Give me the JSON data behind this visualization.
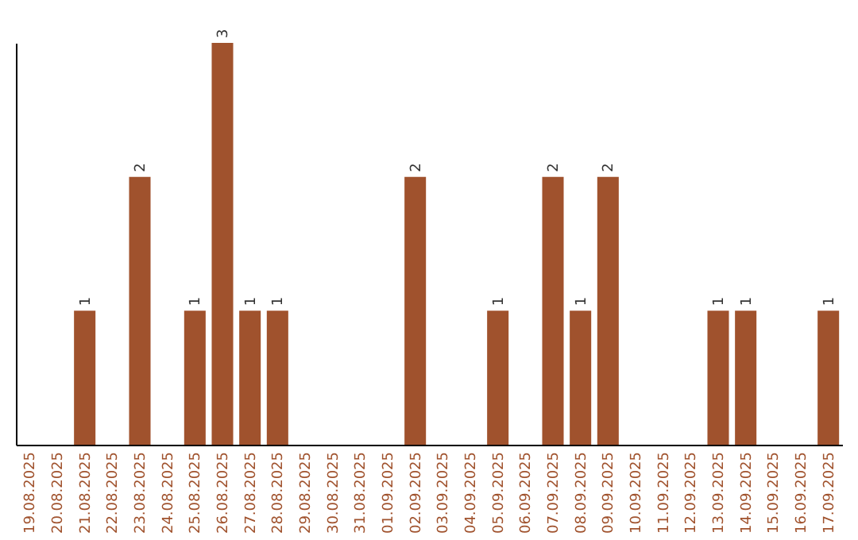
{
  "chart_data": {
    "type": "bar",
    "categories": [
      "19.08.2025",
      "20.08.2025",
      "21.08.2025",
      "22.08.2025",
      "23.08.2025",
      "24.08.2025",
      "25.08.2025",
      "26.08.2025",
      "27.08.2025",
      "28.08.2025",
      "29.08.2025",
      "30.08.2025",
      "31.08.2025",
      "01.09.2025",
      "02.09.2025",
      "03.09.2025",
      "04.09.2025",
      "05.09.2025",
      "06.09.2025",
      "07.09.2025",
      "08.09.2025",
      "09.09.2025",
      "10.09.2025",
      "11.09.2025",
      "12.09.2025",
      "13.09.2025",
      "14.09.2025",
      "15.09.2025",
      "16.09.2025",
      "17.09.2025"
    ],
    "values": [
      0,
      0,
      1,
      0,
      2,
      0,
      1,
      3,
      1,
      1,
      0,
      0,
      0,
      0,
      2,
      0,
      0,
      1,
      0,
      2,
      1,
      2,
      0,
      0,
      0,
      1,
      1,
      0,
      0,
      1
    ],
    "value_labels": [
      null,
      null,
      "1",
      null,
      "2",
      null,
      "1",
      "3",
      "1",
      "1",
      null,
      null,
      null,
      null,
      "2",
      null,
      null,
      "1",
      null,
      "2",
      "1",
      "2",
      null,
      null,
      null,
      "1",
      "1",
      null,
      null,
      "1"
    ],
    "color": "#a0522d",
    "ylim": [
      0,
      3
    ],
    "tick_labels": "x"
  }
}
